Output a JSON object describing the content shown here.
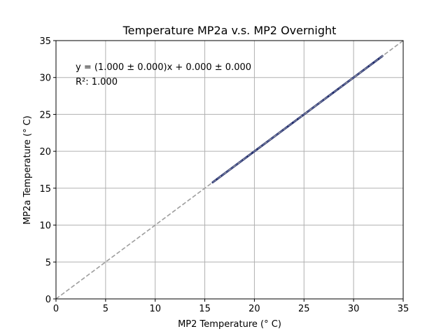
{
  "chart_data": {
    "type": "line",
    "title": "Temperature MP2a v.s. MP2 Overnight",
    "xlabel": "MP2 Temperature (° C)",
    "ylabel": "MP2a Temperature (° C)",
    "xlim": [
      0,
      35
    ],
    "ylim": [
      0,
      35
    ],
    "xticks": [
      0,
      5,
      10,
      15,
      20,
      25,
      30,
      35
    ],
    "yticks": [
      0,
      5,
      10,
      15,
      20,
      25,
      30,
      35
    ],
    "grid": true,
    "annotations": [
      "y = (1.000 ± 0.000)x + 0.000 ± 0.000",
      "R²: 1.000"
    ],
    "series": [
      {
        "style": "data-line",
        "color": "#1f2a6b",
        "x": [
          15.8,
          32.9
        ],
        "y": [
          15.8,
          32.9
        ]
      },
      {
        "style": "fit-line-dashed",
        "color": "#9e9e9e",
        "x": [
          0,
          35
        ],
        "y": [
          0,
          35
        ]
      }
    ]
  }
}
